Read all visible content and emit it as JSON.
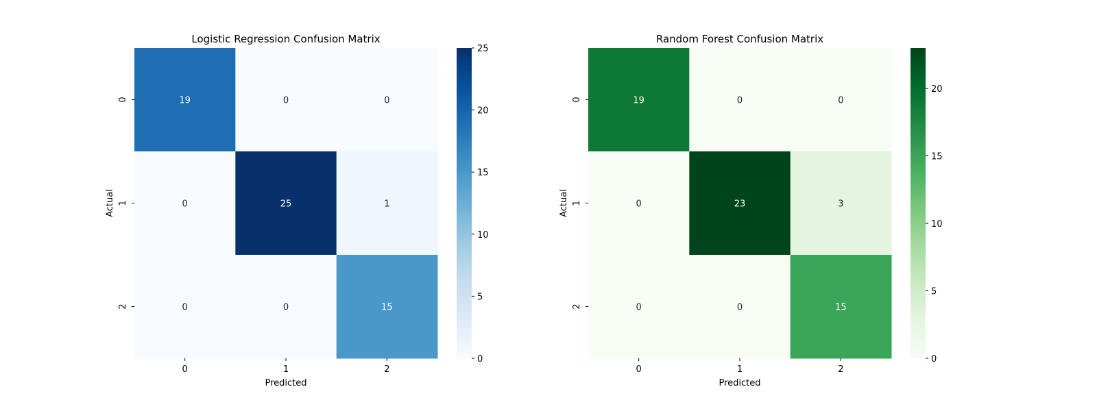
{
  "chart_data": [
    {
      "type": "heatmap",
      "title": "Logistic Regression Confusion Matrix",
      "xlabel": "Predicted",
      "ylabel": "Actual",
      "x_categories": [
        "0",
        "1",
        "2"
      ],
      "y_categories": [
        "0",
        "1",
        "2"
      ],
      "values": [
        [
          19,
          0,
          0
        ],
        [
          0,
          25,
          1
        ],
        [
          0,
          0,
          15
        ]
      ],
      "colormap": "Blues",
      "colorbar": {
        "range": [
          0,
          25
        ],
        "ticks": [
          0,
          5,
          10,
          15,
          20,
          25
        ],
        "colors": [
          "#f7fbff",
          "#deebf7",
          "#c6dbef",
          "#9ecae1",
          "#6baed6",
          "#4292c6",
          "#2171b5",
          "#08519c",
          "#08306b"
        ]
      },
      "grid": false
    },
    {
      "type": "heatmap",
      "title": "Random Forest Confusion Matrix",
      "xlabel": "Predicted",
      "ylabel": "Actual",
      "x_categories": [
        "0",
        "1",
        "2"
      ],
      "y_categories": [
        "0",
        "1",
        "2"
      ],
      "values": [
        [
          19,
          0,
          0
        ],
        [
          0,
          23,
          3
        ],
        [
          0,
          0,
          15
        ]
      ],
      "colormap": "Greens",
      "colorbar": {
        "range": [
          0,
          23
        ],
        "ticks": [
          0,
          5,
          10,
          15,
          20
        ],
        "colors": [
          "#f7fcf5",
          "#e5f5e0",
          "#c7e9c0",
          "#a1d99b",
          "#74c476",
          "#41ab5d",
          "#238b45",
          "#006d2c",
          "#00441b"
        ]
      },
      "grid": false
    }
  ]
}
